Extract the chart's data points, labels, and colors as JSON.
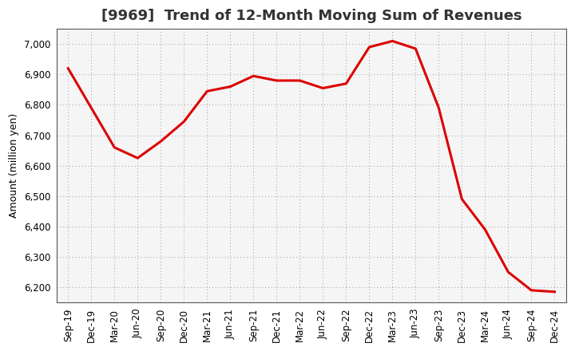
{
  "title": "[9969]  Trend of 12-Month Moving Sum of Revenues",
  "ylabel": "Amount (million yen)",
  "background_color": "#ffffff",
  "plot_bg_color": "#f5f5f5",
  "line_color": "#dd0000",
  "line_width": 2.2,
  "labels": [
    "Sep-19",
    "Dec-19",
    "Mar-20",
    "Jun-20",
    "Sep-20",
    "Dec-20",
    "Mar-21",
    "Jun-21",
    "Sep-21",
    "Dec-21",
    "Mar-22",
    "Jun-22",
    "Sep-22",
    "Dec-22",
    "Mar-23",
    "Jun-23",
    "Sep-23",
    "Dec-23",
    "Mar-24",
    "Jun-24",
    "Sep-24",
    "Dec-24"
  ],
  "values": [
    6920,
    6790,
    6660,
    6625,
    6680,
    6745,
    6845,
    6860,
    6895,
    6880,
    6880,
    6855,
    6870,
    6990,
    7010,
    6985,
    6790,
    6490,
    6390,
    6250,
    6190,
    6185
  ],
  "ylim": [
    6150,
    7050
  ],
  "yticks": [
    6200,
    6300,
    6400,
    6500,
    6600,
    6700,
    6800,
    6900,
    7000
  ],
  "title_fontsize": 13,
  "axis_fontsize": 9.5,
  "tick_fontsize": 8.5,
  "ylabel_fontsize": 9
}
